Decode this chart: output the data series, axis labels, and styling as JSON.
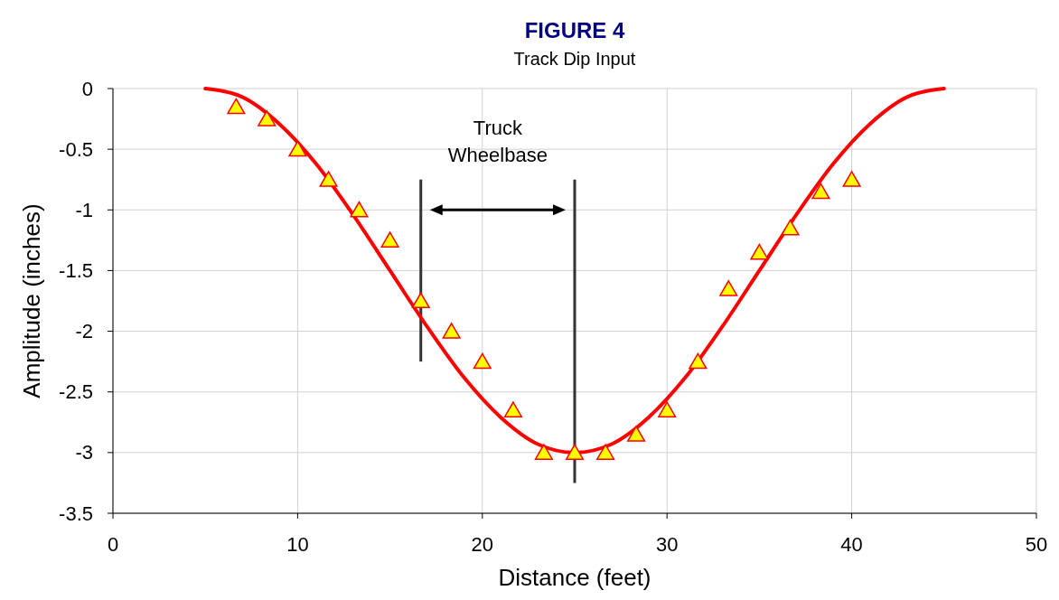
{
  "chart_data": {
    "type": "line",
    "title": "FIGURE 4",
    "subtitle": "Track Dip Input",
    "xlabel": "Distance (feet)",
    "ylabel": "Amplitude (inches)",
    "xlim": [
      0,
      50
    ],
    "xticks": [
      0,
      10,
      20,
      30,
      40,
      50
    ],
    "ylim": [
      -3.5,
      0
    ],
    "yticks": [
      -3.5,
      -3,
      -2.5,
      -2,
      -1.5,
      -1,
      -0.5,
      0
    ],
    "grid": true,
    "series": [
      {
        "color": "#ff0000",
        "marker": "none",
        "line_style": "solid",
        "x": [
          5,
          7,
          9,
          11,
          13,
          15,
          17,
          19,
          21,
          23,
          25,
          27,
          29,
          31,
          33,
          35,
          37,
          39,
          41,
          43,
          45
        ],
        "values": [
          0,
          -0.07,
          -0.29,
          -0.62,
          -1.04,
          -1.5,
          -1.96,
          -2.38,
          -2.71,
          -2.93,
          -3,
          -2.93,
          -2.71,
          -2.38,
          -1.96,
          -1.5,
          -1.04,
          -0.62,
          -0.29,
          -0.07,
          0
        ]
      },
      {
        "type": "scatter",
        "color": "#ffff00",
        "marker": "triangle",
        "x": [
          6.67,
          8.33,
          10,
          11.67,
          13.33,
          15,
          16.67,
          18.33,
          20,
          21.67,
          23.33,
          25,
          26.67,
          28.33,
          30,
          31.67,
          33.33,
          35,
          36.67,
          38.33,
          40
        ],
        "values": [
          -0.15,
          -0.25,
          -0.5,
          -0.75,
          -1,
          -1.25,
          -1.75,
          -2,
          -2.25,
          -2.65,
          -3,
          -3,
          -3,
          -2.85,
          -2.65,
          -2.25,
          -1.65,
          -1.35,
          -1.15,
          -0.85,
          -0.75
        ]
      }
    ],
    "ref_lines": [
      {
        "axis": "x",
        "value": 16.67,
        "color": "#333333"
      },
      {
        "axis": "x",
        "value": 25,
        "color": "#333333"
      }
    ],
    "annotations": [
      "Truck Wheelbase"
    ]
  }
}
